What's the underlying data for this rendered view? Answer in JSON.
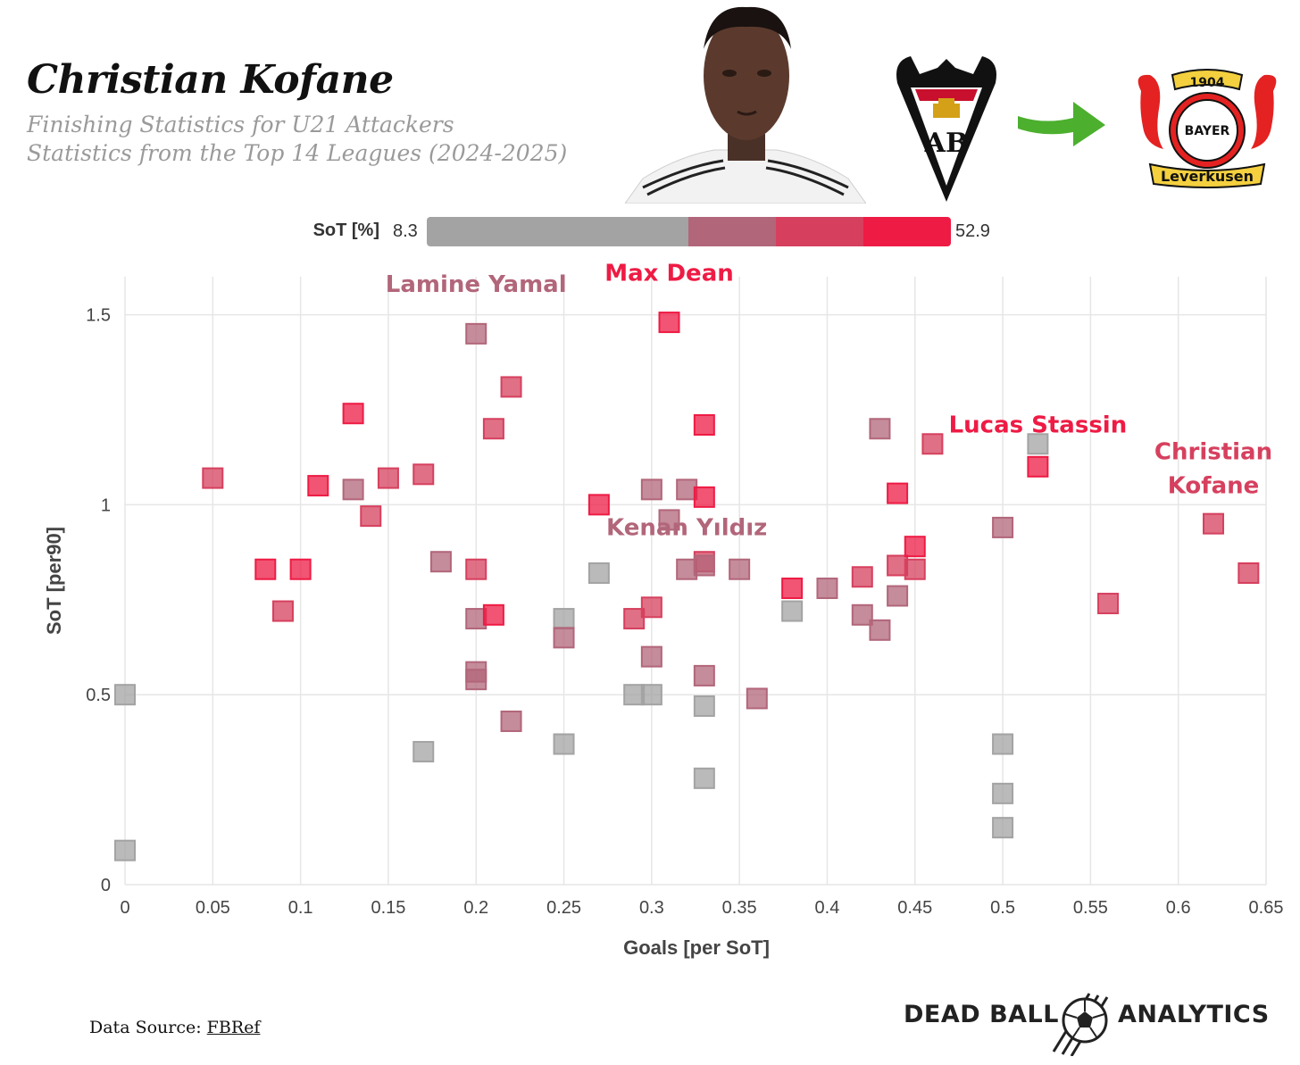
{
  "header": {
    "title": "Christian Kofane",
    "subtitle_1": "Finishing Statistics for U21 Attackers",
    "subtitle_2": "Statistics from the Top 14 Leagues (2024-2025)"
  },
  "images": {
    "player_photo": "player-portrait",
    "from_club": "albacete-crest",
    "transfer_arrow": "right-arrow-icon",
    "to_club": "bayer-leverkusen-crest",
    "to_club_text_year": "1904",
    "to_club_text_bayer": "BAYER",
    "to_club_text_name": "Leverkusen"
  },
  "legend": {
    "label": "SoT [%]",
    "min": "8.3",
    "max": "52.9",
    "colors": [
      "#a3a3a3",
      "#a3a3a3",
      "#a3a3a3",
      "#b2667a",
      "#d6405e",
      "#ee1b44"
    ]
  },
  "colors": {
    "grey": "#a3a3a3",
    "mauve": "#b2667a",
    "pink": "#d6405e",
    "red": "#ee1b44"
  },
  "chart_data": {
    "type": "scatter",
    "xlabel": "Goals [per SoT]",
    "ylabel": "SoT [per90]",
    "xlim": [
      0,
      0.65
    ],
    "ylim": [
      0,
      1.6
    ],
    "xticks": [
      "0",
      "0.05",
      "0.1",
      "0.15",
      "0.2",
      "0.25",
      "0.3",
      "0.35",
      "0.4",
      "0.45",
      "0.5",
      "0.55",
      "0.6",
      "0.65"
    ],
    "yticks": [
      "0",
      "0.5",
      "1",
      "1.5"
    ],
    "grid": true,
    "points": [
      {
        "x": 0.0,
        "y": 0.5,
        "c": "grey"
      },
      {
        "x": 0.0,
        "y": 0.09,
        "c": "grey"
      },
      {
        "x": 0.05,
        "y": 1.07,
        "c": "pink"
      },
      {
        "x": 0.08,
        "y": 0.83,
        "c": "red"
      },
      {
        "x": 0.09,
        "y": 0.72,
        "c": "pink"
      },
      {
        "x": 0.1,
        "y": 0.83,
        "c": "red"
      },
      {
        "x": 0.11,
        "y": 1.05,
        "c": "red"
      },
      {
        "x": 0.13,
        "y": 1.24,
        "c": "red"
      },
      {
        "x": 0.13,
        "y": 1.04,
        "c": "mauve"
      },
      {
        "x": 0.14,
        "y": 0.97,
        "c": "pink"
      },
      {
        "x": 0.15,
        "y": 1.07,
        "c": "pink"
      },
      {
        "x": 0.17,
        "y": 1.08,
        "c": "pink"
      },
      {
        "x": 0.17,
        "y": 0.35,
        "c": "grey"
      },
      {
        "x": 0.18,
        "y": 0.85,
        "c": "mauve"
      },
      {
        "x": 0.2,
        "y": 1.45,
        "c": "mauve"
      },
      {
        "x": 0.2,
        "y": 0.83,
        "c": "pink"
      },
      {
        "x": 0.2,
        "y": 0.7,
        "c": "mauve"
      },
      {
        "x": 0.2,
        "y": 0.56,
        "c": "mauve"
      },
      {
        "x": 0.2,
        "y": 0.54,
        "c": "mauve"
      },
      {
        "x": 0.21,
        "y": 1.2,
        "c": "pink"
      },
      {
        "x": 0.21,
        "y": 0.71,
        "c": "red"
      },
      {
        "x": 0.22,
        "y": 1.31,
        "c": "pink"
      },
      {
        "x": 0.22,
        "y": 0.43,
        "c": "mauve"
      },
      {
        "x": 0.25,
        "y": 0.7,
        "c": "grey"
      },
      {
        "x": 0.25,
        "y": 0.65,
        "c": "mauve"
      },
      {
        "x": 0.25,
        "y": 0.37,
        "c": "grey"
      },
      {
        "x": 0.27,
        "y": 1.0,
        "c": "red"
      },
      {
        "x": 0.27,
        "y": 0.82,
        "c": "grey"
      },
      {
        "x": 0.29,
        "y": 0.7,
        "c": "pink"
      },
      {
        "x": 0.29,
        "y": 0.5,
        "c": "grey"
      },
      {
        "x": 0.3,
        "y": 1.04,
        "c": "mauve"
      },
      {
        "x": 0.3,
        "y": 0.73,
        "c": "pink"
      },
      {
        "x": 0.3,
        "y": 0.6,
        "c": "mauve"
      },
      {
        "x": 0.3,
        "y": 0.5,
        "c": "grey"
      },
      {
        "x": 0.31,
        "y": 1.48,
        "c": "red",
        "label": "Max Dean"
      },
      {
        "x": 0.31,
        "y": 0.96,
        "c": "mauve"
      },
      {
        "x": 0.32,
        "y": 1.04,
        "c": "mauve"
      },
      {
        "x": 0.32,
        "y": 0.83,
        "c": "mauve"
      },
      {
        "x": 0.33,
        "y": 1.21,
        "c": "red"
      },
      {
        "x": 0.33,
        "y": 1.02,
        "c": "red"
      },
      {
        "x": 0.33,
        "y": 0.85,
        "c": "pink"
      },
      {
        "x": 0.33,
        "y": 0.84,
        "c": "mauve",
        "label": "Kenan Yıldız"
      },
      {
        "x": 0.33,
        "y": 0.55,
        "c": "mauve"
      },
      {
        "x": 0.33,
        "y": 0.47,
        "c": "grey"
      },
      {
        "x": 0.33,
        "y": 0.28,
        "c": "grey"
      },
      {
        "x": 0.35,
        "y": 0.83,
        "c": "mauve"
      },
      {
        "x": 0.36,
        "y": 0.49,
        "c": "mauve"
      },
      {
        "x": 0.38,
        "y": 0.78,
        "c": "red"
      },
      {
        "x": 0.38,
        "y": 0.72,
        "c": "grey"
      },
      {
        "x": 0.4,
        "y": 0.78,
        "c": "mauve"
      },
      {
        "x": 0.42,
        "y": 0.81,
        "c": "pink"
      },
      {
        "x": 0.42,
        "y": 0.71,
        "c": "mauve"
      },
      {
        "x": 0.43,
        "y": 1.2,
        "c": "mauve"
      },
      {
        "x": 0.43,
        "y": 0.67,
        "c": "mauve"
      },
      {
        "x": 0.44,
        "y": 1.03,
        "c": "red"
      },
      {
        "x": 0.44,
        "y": 0.84,
        "c": "pink"
      },
      {
        "x": 0.44,
        "y": 0.76,
        "c": "mauve"
      },
      {
        "x": 0.45,
        "y": 0.89,
        "c": "red"
      },
      {
        "x": 0.45,
        "y": 0.83,
        "c": "pink"
      },
      {
        "x": 0.46,
        "y": 1.16,
        "c": "pink"
      },
      {
        "x": 0.5,
        "y": 0.94,
        "c": "mauve"
      },
      {
        "x": 0.5,
        "y": 0.37,
        "c": "grey"
      },
      {
        "x": 0.5,
        "y": 0.24,
        "c": "grey"
      },
      {
        "x": 0.5,
        "y": 0.15,
        "c": "grey"
      },
      {
        "x": 0.52,
        "y": 1.16,
        "c": "grey"
      },
      {
        "x": 0.52,
        "y": 1.1,
        "c": "red",
        "label": "Lucas Stassin"
      },
      {
        "x": 0.56,
        "y": 0.74,
        "c": "pink"
      },
      {
        "x": 0.62,
        "y": 0.95,
        "c": "pink",
        "label": "Christian Kofane"
      },
      {
        "x": 0.64,
        "y": 0.82,
        "c": "pink"
      }
    ],
    "annotations": [
      {
        "text": "Lamine Yamal",
        "c": "mauve",
        "ax": 0.2,
        "ay": 1.56
      },
      {
        "text": "Max Dean",
        "c": "red",
        "ax": 0.31,
        "ay": 1.59
      },
      {
        "text": "Kenan Yıldız",
        "c": "mauve",
        "ax": 0.32,
        "ay": 0.92
      },
      {
        "text": "Lucas Stassin",
        "c": "red",
        "ax": 0.52,
        "ay": 1.19
      },
      {
        "text": "Christian",
        "c": "pink",
        "ax": 0.62,
        "ay": 1.12
      },
      {
        "text": "Kofane",
        "c": "pink",
        "ax": 0.62,
        "ay": 1.03
      }
    ]
  },
  "footer": {
    "source_prefix": "Data Source: ",
    "source_link": "FBRef",
    "brand_left": "DEAD BALL",
    "brand_right": "ANALYTICS"
  }
}
